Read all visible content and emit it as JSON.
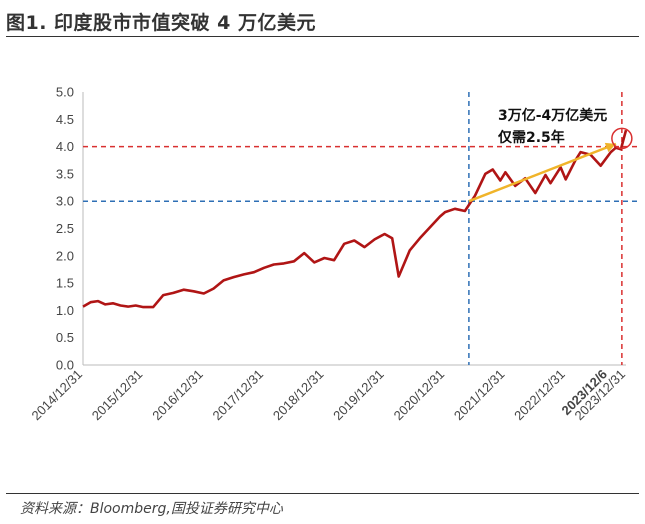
{
  "figure": {
    "title": "图1. 印度股市市值突破 4 万亿美元",
    "source": "资料来源：Bloomberg,国投证券研究中心"
  },
  "chart_data": {
    "type": "line",
    "title": "",
    "xlabel": "",
    "ylabel": "",
    "ylim": [
      0,
      5
    ],
    "y_ticks": [
      "0.0",
      "0.5",
      "1.0",
      "1.5",
      "2.0",
      "2.5",
      "3.0",
      "3.5",
      "4.0",
      "4.5",
      "5.0"
    ],
    "x_ticks": [
      "2014/12/31",
      "2015/12/31",
      "2016/12/31",
      "2017/12/31",
      "2018/12/31",
      "2019/12/31",
      "2020/12/31",
      "2021/12/31",
      "2022/12/31",
      "2023/12/6",
      "2023/12/31"
    ],
    "grid": false,
    "legend": "none",
    "series": [
      {
        "color": "#b01515",
        "x": [
          "2014-12-31",
          "2015-02-15",
          "2015-03-31",
          "2015-05-15",
          "2015-06-30",
          "2015-08-15",
          "2015-09-30",
          "2015-11-15",
          "2015-12-31",
          "2016-02-29",
          "2016-04-30",
          "2016-06-30",
          "2016-08-31",
          "2016-10-31",
          "2016-12-31",
          "2017-02-28",
          "2017-04-30",
          "2017-06-30",
          "2017-08-31",
          "2017-10-31",
          "2017-12-31",
          "2018-02-28",
          "2018-04-30",
          "2018-06-30",
          "2018-08-31",
          "2018-10-31",
          "2018-12-31",
          "2019-02-28",
          "2019-04-30",
          "2019-06-30",
          "2019-08-31",
          "2019-10-31",
          "2019-12-31",
          "2020-02-15",
          "2020-03-25",
          "2020-05-31",
          "2020-07-31",
          "2020-09-30",
          "2020-11-30",
          "2020-12-31",
          "2021-02-28",
          "2021-04-30",
          "2021-06-30",
          "2021-08-31",
          "2021-10-15",
          "2021-11-30",
          "2021-12-31",
          "2022-02-28",
          "2022-04-30",
          "2022-06-30",
          "2022-08-31",
          "2022-09-30",
          "2022-11-30",
          "2022-12-31",
          "2023-02-28",
          "2023-03-31",
          "2023-05-31",
          "2023-07-31",
          "2023-09-30",
          "2023-10-31",
          "2023-11-30",
          "2023-12-06",
          "2023-12-31"
        ],
        "values": [
          1.07,
          1.15,
          1.17,
          1.11,
          1.13,
          1.09,
          1.07,
          1.09,
          1.06,
          1.06,
          1.28,
          1.32,
          1.38,
          1.35,
          1.31,
          1.4,
          1.55,
          1.61,
          1.66,
          1.7,
          1.78,
          1.84,
          1.86,
          1.9,
          2.05,
          1.88,
          1.96,
          1.92,
          2.22,
          2.28,
          2.16,
          2.3,
          2.4,
          2.32,
          1.62,
          2.1,
          2.32,
          2.52,
          2.72,
          2.8,
          2.86,
          2.82,
          3.1,
          3.5,
          3.58,
          3.38,
          3.53,
          3.28,
          3.42,
          3.15,
          3.48,
          3.33,
          3.62,
          3.4,
          3.75,
          3.9,
          3.85,
          3.65,
          3.9,
          3.98,
          3.95,
          4.02,
          4.3
        ]
      }
    ],
    "reference_lines": [
      {
        "axis": "y",
        "value": 4.0,
        "color": "#d93030"
      },
      {
        "axis": "y",
        "value": 3.0,
        "color": "#2e6fb5"
      },
      {
        "axis": "x",
        "value": "2021-05-24",
        "color": "#2e6fb5"
      },
      {
        "axis": "x",
        "value": "2023-12-06",
        "color": "#d93030"
      }
    ],
    "annotations": {
      "text_line1": "3万亿-4万亿美元",
      "text_line2": "仅需2.5年",
      "arrow_from": {
        "x": "2021-05-24",
        "y": 3.0
      },
      "arrow_to": {
        "x": "2023-10-31",
        "y": 4.05
      },
      "arrow_color": "#f0b42a",
      "circle_at": {
        "x": "2023-12-06",
        "y": 4.15
      }
    },
    "bold_x_tick": "2023/12/6"
  }
}
